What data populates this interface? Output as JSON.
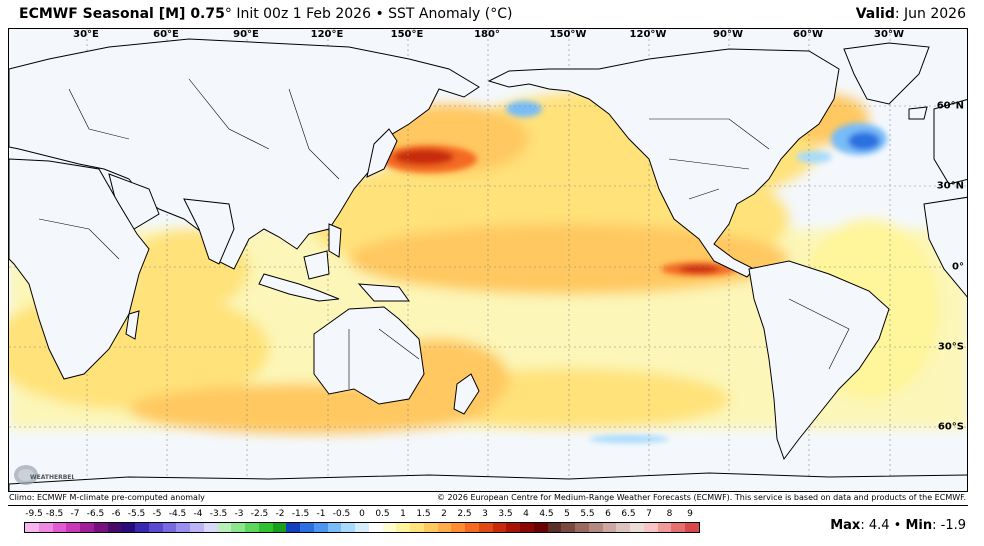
{
  "header": {
    "model": "ECMWF Seasonal [M] 0.75",
    "degree": "°",
    "init": "Init 00z 1 Feb 2026",
    "separator": "•",
    "product": "SST Anomaly (°C)",
    "valid_label": "Valid",
    "valid_value": ": Jun 2026"
  },
  "map": {
    "longitude_labels": [
      "30°E",
      "60°E",
      "90°E",
      "120°E",
      "150°E",
      "180°",
      "150°W",
      "120°W",
      "90°W",
      "60°W",
      "30°W"
    ],
    "latitude_labels": [
      "60°N",
      "30°N",
      "0°",
      "30°S",
      "60°S"
    ],
    "land_color": "#f4f8fd",
    "coast_color": "#000000",
    "grid_color": "#888888",
    "anomaly_features": [
      {
        "name": "north-pacific-warm-blob",
        "anomaly_c": 4.0
      },
      {
        "name": "eastern-equatorial-pacific-warm",
        "anomaly_c": 4.4
      },
      {
        "name": "north-atlantic-cold-pool",
        "anomaly_c": -1.9
      },
      {
        "name": "bering-cold-patch",
        "anomaly_c": -1.0
      }
    ],
    "logo_text": "WEATHERBELL"
  },
  "credits": {
    "left": "Climo: ECMWF M-climate pre-computed anomaly",
    "right": "© 2026 European Centre for Medium-Range Weather Forecasts (ECMWF). This service is based on data and products of the ECMWF."
  },
  "colorbar": {
    "labels": [
      "-9.5",
      "-8.5",
      "-7",
      "-6.5",
      "-6",
      "-5.5",
      "-5",
      "-4.5",
      "-4",
      "-3.5",
      "-3",
      "-2.5",
      "-2",
      "-1.5",
      "-1",
      "-0.5",
      "0",
      "0.5",
      "1",
      "1.5",
      "2",
      "2.5",
      "3",
      "3.5",
      "4",
      "4.5",
      "5",
      "5.5",
      "6",
      "6.5",
      "7",
      "8",
      "9"
    ],
    "colors": [
      "#f7b5f0",
      "#ef8ae3",
      "#e05cd2",
      "#c838b8",
      "#a01e9a",
      "#78107e",
      "#4a0a6a",
      "#2a0c7a",
      "#3a2ab0",
      "#5a4ad0",
      "#7a6ae0",
      "#9a8ef0",
      "#bcb4f6",
      "#d8d8f8",
      "#b8f0b8",
      "#8ce68c",
      "#5cd65c",
      "#30c030",
      "#18a018",
      "#1040c0",
      "#2a70e0",
      "#4a96f0",
      "#78bcf8",
      "#a8dafc",
      "#d4eefe",
      "#ffffff",
      "#fffdd0",
      "#fff59a",
      "#ffe27a",
      "#ffc860",
      "#ffad48",
      "#ff8c32",
      "#f46a22",
      "#e04a14",
      "#c82a0a",
      "#a81404",
      "#880800",
      "#6a0400",
      "#5a3028",
      "#7a4a40",
      "#9a6a60",
      "#b48a80",
      "#caa8a0",
      "#dcc4bc",
      "#ecdcd8",
      "#f8c4c4",
      "#f09a9a",
      "#e47070",
      "#d84a4a"
    ]
  },
  "stats": {
    "max_label": "Max",
    "max_value": ": 4.4",
    "separator": " • ",
    "min_label": "Min",
    "min_value": ": -1.9"
  }
}
